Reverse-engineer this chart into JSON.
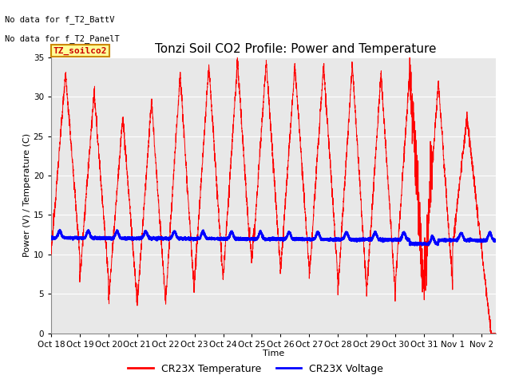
{
  "title": "Tonzi Soil CO2 Profile: Power and Temperature",
  "xlabel": "Time",
  "ylabel": "Power (V) / Temperature (C)",
  "ylim": [
    0,
    35
  ],
  "xlim_days": [
    0,
    15.5
  ],
  "x_tick_labels": [
    "Oct 18",
    "Oct 19",
    "Oct 20",
    "Oct 21",
    "Oct 22",
    "Oct 23",
    "Oct 24",
    "Oct 25",
    "Oct 26",
    "Oct 27",
    "Oct 28",
    "Oct 29",
    "Oct 30",
    "Oct 31",
    "Nov 1",
    "Nov 2"
  ],
  "no_data_text1": "No data for f_T2_BattV",
  "no_data_text2": "No data for f_T2_PanelT",
  "legend_label_text": "TZ_soilco2",
  "legend_temp": "CR23X Temperature",
  "legend_volt": "CR23X Voltage",
  "temp_color": "#ff0000",
  "volt_color": "#0000ff",
  "title_fontsize": 11,
  "axis_fontsize": 8,
  "tick_fontsize": 7.5
}
